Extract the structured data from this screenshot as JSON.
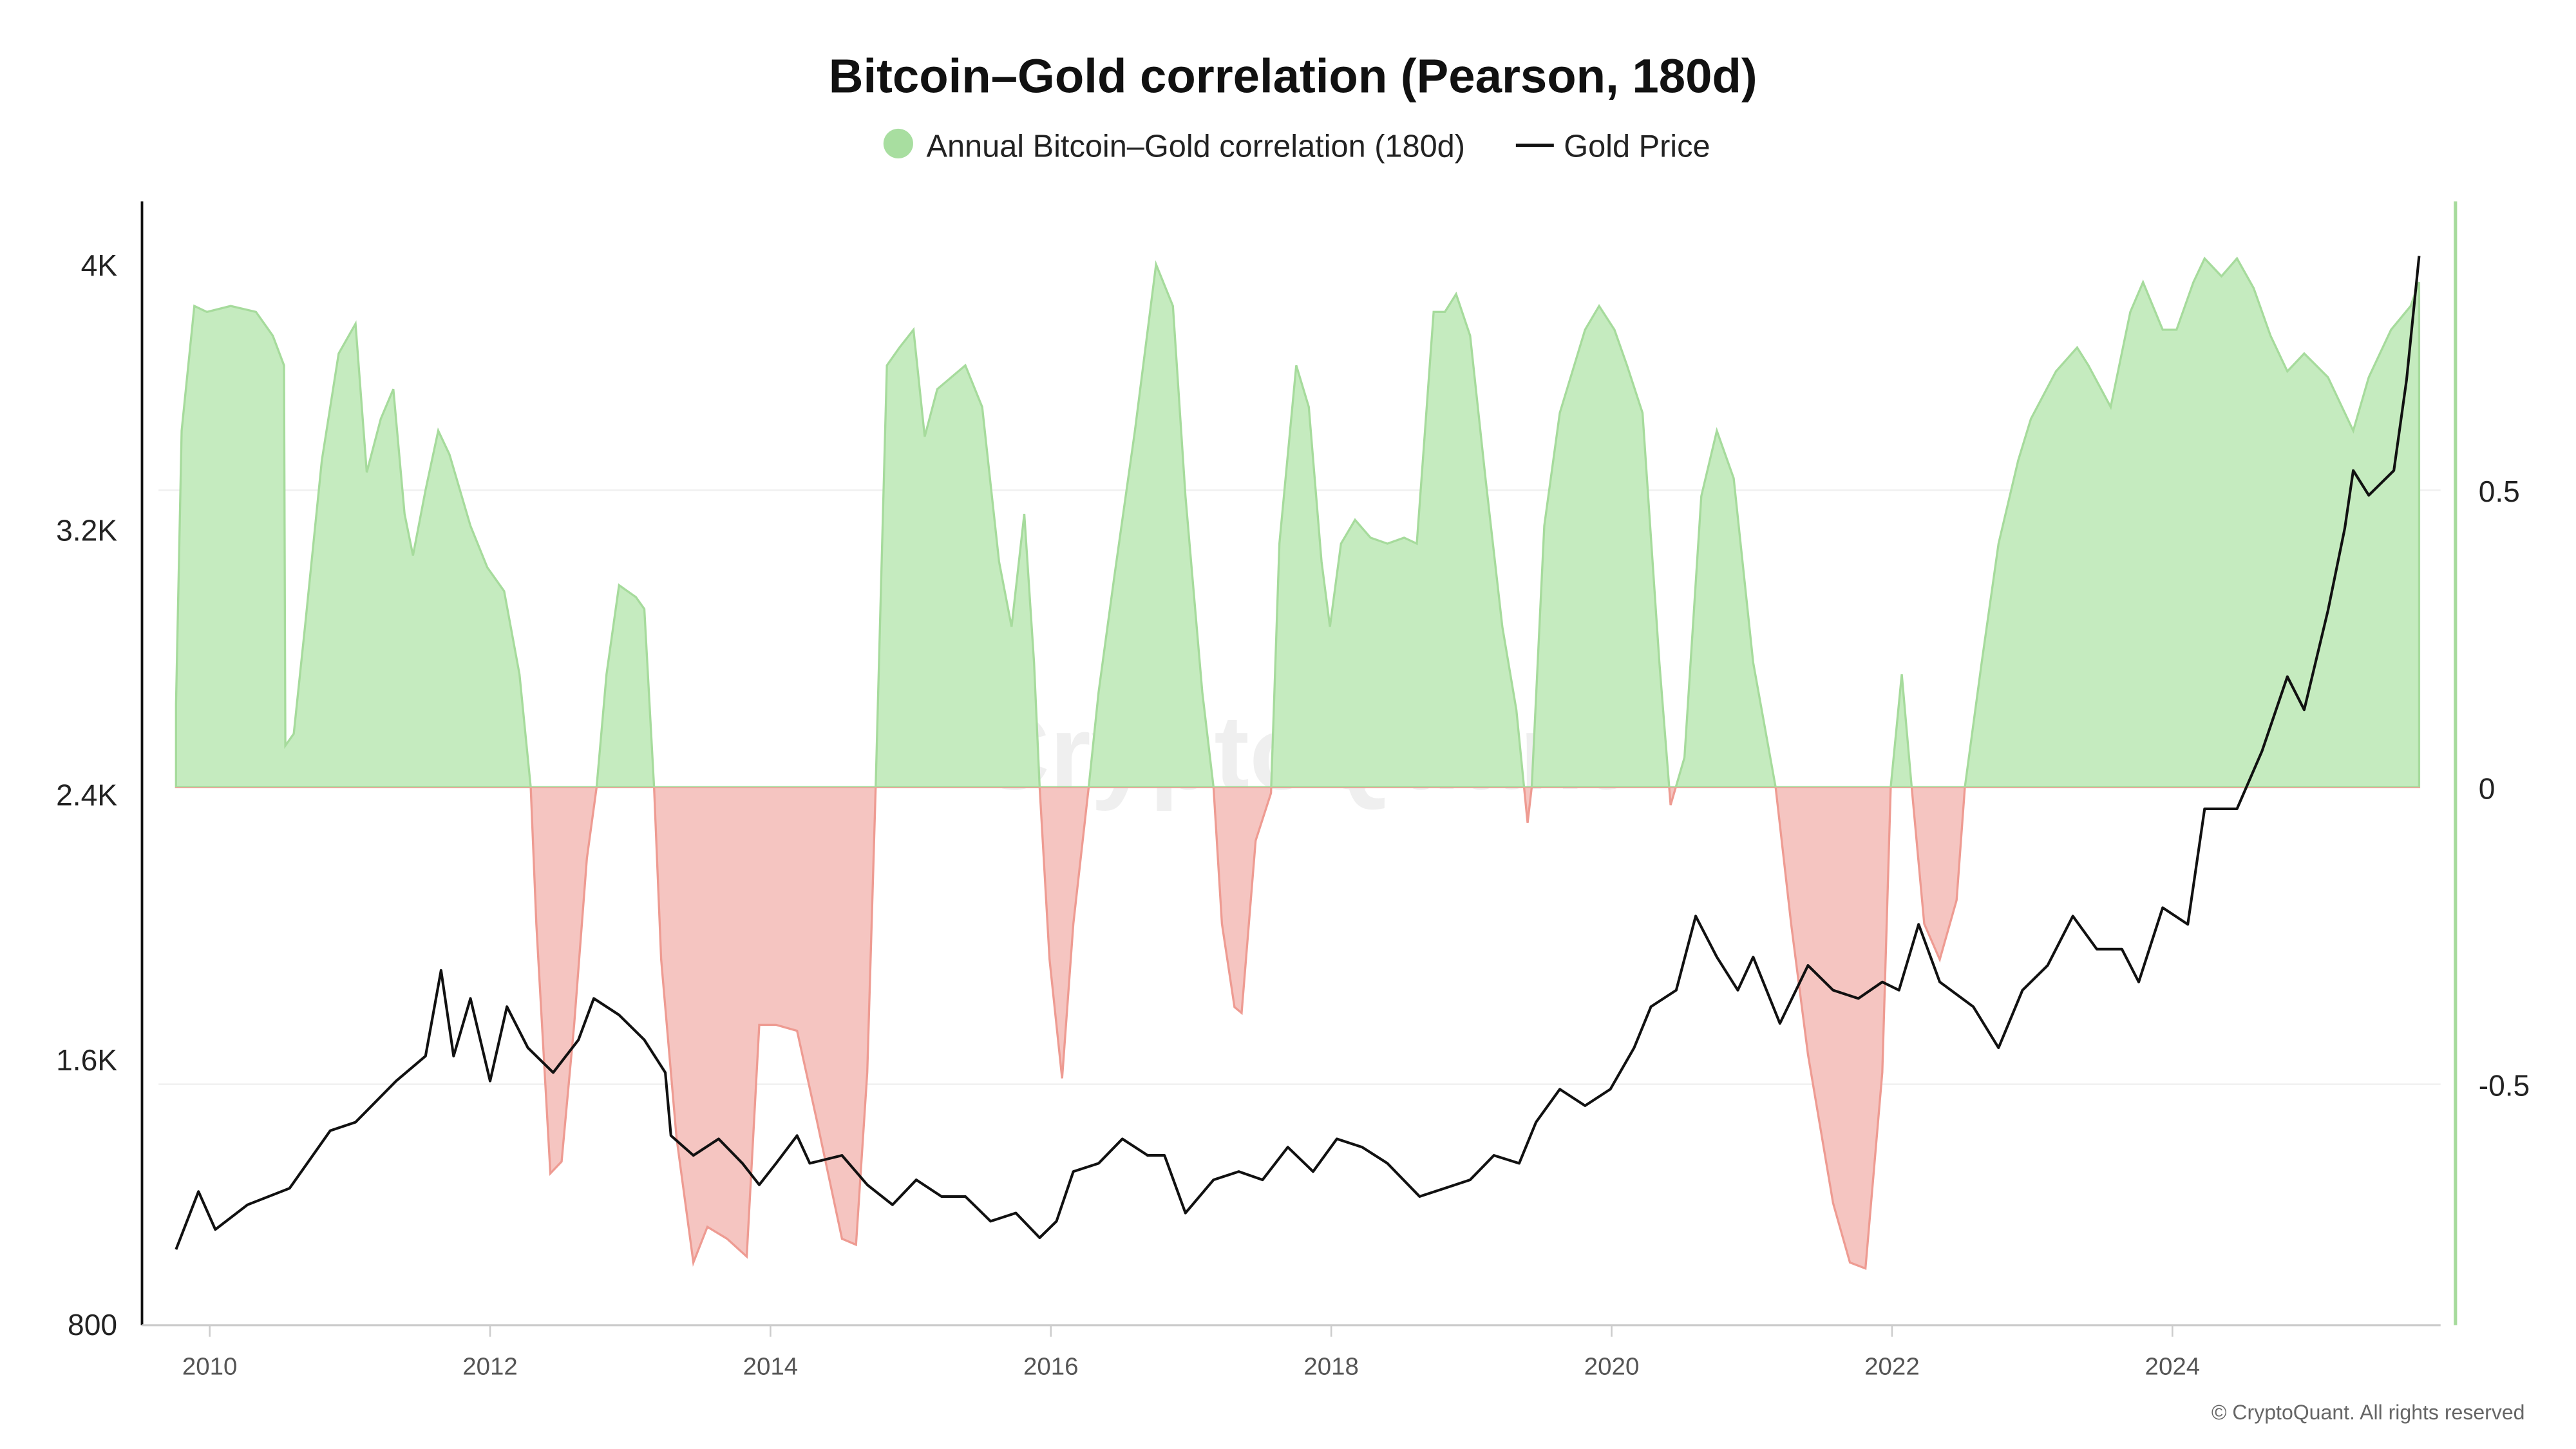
{
  "chart_data": {
    "type": "area+line",
    "title": "Bitcoin–Gold correlation (Pearson, 180d)",
    "legend": {
      "placement": "top-center",
      "entries": [
        "Annual Bitcoin–Gold correlation (180d)",
        "Gold Price"
      ]
    },
    "watermark": "CryptoQuant",
    "credit": "© CryptoQuant. All rights reserved",
    "x_ticks": [
      "2010",
      "2012",
      "2014",
      "2016",
      "2018",
      "2020",
      "2022",
      "2024"
    ],
    "x_range": [
      2009.76,
      2025.76
    ],
    "left_axis": {
      "ticks": [
        "800",
        "1.6K",
        "2.4K",
        "3.2K",
        "4K"
      ],
      "values": [
        800,
        1600,
        2400,
        3200,
        4000
      ],
      "range": [
        800,
        4190
      ]
    },
    "right_axis": {
      "ticks": [
        "-0.5",
        "0",
        "0.5"
      ],
      "values": [
        -0.5,
        0,
        0.5
      ],
      "range": [
        -0.903,
        0.986
      ]
    },
    "grid": "horizontal, right-axis ticks",
    "colors": {
      "positive_fill": "#c5ebbf",
      "positive_line": "#a6db9c",
      "negative_fill": "#f5c5c1",
      "negative_line": "#ee9b92",
      "gold_line": "#111111",
      "legend_dot": "#a8dea0",
      "right_axis": "#a6db9c"
    },
    "series": [
      {
        "name": "Annual Bitcoin–Gold correlation (180d)",
        "axis": "right",
        "type": "area",
        "x": [
          2009.76,
          2009.8,
          2009.89,
          2009.98,
          2010.15,
          2010.33,
          2010.45,
          2010.53,
          2010.54,
          2010.6,
          2010.68,
          2010.8,
          2010.92,
          2011.04,
          2011.12,
          2011.22,
          2011.31,
          2011.39,
          2011.45,
          2011.54,
          2011.63,
          2011.71,
          2011.86,
          2011.98,
          2012.1,
          2012.21,
          2012.29,
          2012.33,
          2012.43,
          2012.51,
          2012.6,
          2012.69,
          2012.76,
          2012.83,
          2012.92,
          2013.04,
          2013.1,
          2013.17,
          2013.22,
          2013.33,
          2013.45,
          2013.55,
          2013.69,
          2013.83,
          2013.92,
          2014.04,
          2014.19,
          2014.33,
          2014.51,
          2014.61,
          2014.69,
          2014.75,
          2014.83,
          2014.92,
          2015.02,
          2015.1,
          2015.19,
          2015.39,
          2015.51,
          2015.63,
          2015.72,
          2015.81,
          2015.88,
          2015.92,
          2015.99,
          2016.08,
          2016.16,
          2016.27,
          2016.34,
          2016.45,
          2016.6,
          2016.75,
          2016.87,
          2016.96,
          2017.08,
          2017.16,
          2017.22,
          2017.31,
          2017.36,
          2017.46,
          2017.57,
          2017.63,
          2017.75,
          2017.84,
          2017.93,
          2017.99,
          2018.07,
          2018.17,
          2018.28,
          2018.4,
          2018.52,
          2018.61,
          2018.73,
          2018.81,
          2018.89,
          2018.99,
          2019.1,
          2019.22,
          2019.32,
          2019.4,
          2019.43,
          2019.52,
          2019.63,
          2019.81,
          2019.91,
          2020.02,
          2020.11,
          2020.22,
          2020.34,
          2020.42,
          2020.52,
          2020.64,
          2020.75,
          2020.87,
          2021.01,
          2021.17,
          2021.28,
          2021.4,
          2021.58,
          2021.7,
          2021.81,
          2021.93,
          2021.99,
          2022.07,
          2022.14,
          2022.23,
          2022.34,
          2022.46,
          2022.52,
          2022.64,
          2022.76,
          2022.9,
          2022.99,
          2023.17,
          2023.32,
          2023.4,
          2023.56,
          2023.7,
          2023.79,
          2023.93,
          2024.03,
          2024.15,
          2024.23,
          2024.35,
          2024.46,
          2024.58,
          2024.7,
          2024.82,
          2024.94,
          2025.11,
          2025.29,
          2025.4,
          2025.56,
          2025.7,
          2025.76
        ],
        "values": [
          0.14,
          0.6,
          0.81,
          0.8,
          0.81,
          0.8,
          0.76,
          0.71,
          0.07,
          0.09,
          0.27,
          0.55,
          0.73,
          0.78,
          0.53,
          0.62,
          0.67,
          0.46,
          0.39,
          0.5,
          0.6,
          0.56,
          0.44,
          0.37,
          0.33,
          0.19,
          0,
          -0.23,
          -0.65,
          -0.63,
          -0.4,
          -0.12,
          0,
          0.19,
          0.34,
          0.32,
          0.3,
          0,
          -0.29,
          -0.59,
          -0.8,
          -0.74,
          -0.76,
          -0.79,
          -0.4,
          -0.4,
          -0.41,
          -0.56,
          -0.76,
          -0.77,
          -0.48,
          0,
          0.71,
          0.74,
          0.77,
          0.59,
          0.67,
          0.71,
          0.64,
          0.38,
          0.27,
          0.46,
          0.21,
          0,
          -0.29,
          -0.49,
          -0.23,
          0,
          0.16,
          0.35,
          0.6,
          0.88,
          0.81,
          0.49,
          0.16,
          0,
          -0.23,
          -0.37,
          -0.38,
          -0.09,
          -0.01,
          0.41,
          0.71,
          0.64,
          0.38,
          0.27,
          0.41,
          0.45,
          0.42,
          0.41,
          0.42,
          0.41,
          0.8,
          0.8,
          0.83,
          0.76,
          0.52,
          0.27,
          0.13,
          -0.06,
          0,
          0.44,
          0.63,
          0.77,
          0.81,
          0.77,
          0.71,
          0.63,
          0.21,
          -0.03,
          0.05,
          0.49,
          0.6,
          0.52,
          0.21,
          0,
          -0.23,
          -0.45,
          -0.7,
          -0.8,
          -0.81,
          -0.48,
          0,
          0.19,
          0,
          -0.23,
          -0.29,
          -0.19,
          0,
          0.21,
          0.41,
          0.55,
          0.62,
          0.7,
          0.74,
          0.71,
          0.64,
          0.8,
          0.85,
          0.77,
          0.77,
          0.85,
          0.89,
          0.86,
          0.89,
          0.84,
          0.76,
          0.7,
          0.73,
          0.69,
          0.6,
          0.69,
          0.77,
          0.81,
          0.85
        ]
      },
      {
        "name": "Gold Price",
        "axis": "left",
        "type": "line",
        "x": [
          2009.76,
          2009.92,
          2010.04,
          2010.27,
          2010.57,
          2010.86,
          2011.04,
          2011.33,
          2011.54,
          2011.65,
          2011.74,
          2011.86,
          2012.0,
          2012.12,
          2012.27,
          2012.45,
          2012.63,
          2012.74,
          2012.92,
          2013.1,
          2013.25,
          2013.29,
          2013.45,
          2013.63,
          2013.8,
          2013.92,
          2014.04,
          2014.19,
          2014.28,
          2014.51,
          2014.69,
          2014.87,
          2015.04,
          2015.22,
          2015.39,
          2015.57,
          2015.75,
          2015.92,
          2016.04,
          2016.16,
          2016.34,
          2016.51,
          2016.69,
          2016.81,
          2016.96,
          2017.16,
          2017.34,
          2017.51,
          2017.69,
          2017.87,
          2018.04,
          2018.22,
          2018.4,
          2018.63,
          2018.81,
          2018.99,
          2019.16,
          2019.34,
          2019.46,
          2019.63,
          2019.81,
          2019.99,
          2020.16,
          2020.28,
          2020.46,
          2020.6,
          2020.75,
          2020.9,
          2021.01,
          2021.2,
          2021.4,
          2021.58,
          2021.76,
          2021.93,
          2022.05,
          2022.19,
          2022.34,
          2022.58,
          2022.76,
          2022.93,
          2023.11,
          2023.29,
          2023.46,
          2023.64,
          2023.76,
          2023.93,
          2024.11,
          2024.23,
          2024.46,
          2024.64,
          2024.82,
          2024.94,
          2025.11,
          2025.23,
          2025.29,
          2025.4,
          2025.58,
          2025.67,
          2025.76
        ],
        "values": [
          1024,
          1199,
          1084,
          1159,
          1209,
          1383,
          1408,
          1533,
          1608,
          1867,
          1608,
          1782,
          1533,
          1757,
          1633,
          1558,
          1657,
          1782,
          1732,
          1657,
          1558,
          1368,
          1308,
          1358,
          1284,
          1219,
          1284,
          1368,
          1284,
          1308,
          1219,
          1159,
          1234,
          1184,
          1184,
          1109,
          1134,
          1059,
          1109,
          1259,
          1284,
          1358,
          1308,
          1308,
          1134,
          1234,
          1259,
          1234,
          1333,
          1259,
          1358,
          1333,
          1284,
          1184,
          1209,
          1234,
          1308,
          1284,
          1408,
          1508,
          1458,
          1508,
          1633,
          1757,
          1807,
          2031,
          1907,
          1807,
          1907,
          1707,
          1882,
          1807,
          1782,
          1832,
          1807,
          2006,
          1832,
          1757,
          1633,
          1807,
          1882,
          2031,
          1931,
          1931,
          1832,
          2056,
          2006,
          2355,
          2355,
          2530,
          2754,
          2654,
          2954,
          3203,
          3377,
          3302,
          3377,
          3651,
          4025
        ]
      }
    ]
  }
}
